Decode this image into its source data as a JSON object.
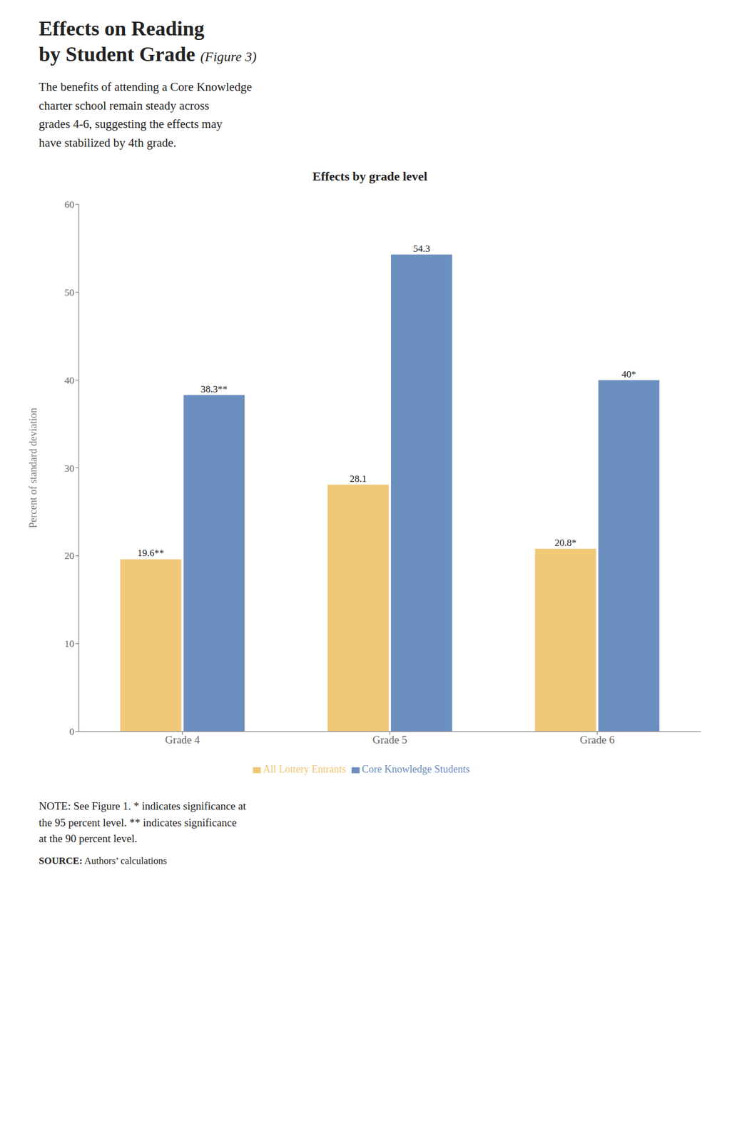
{
  "chart_data": {
    "type": "bar",
    "title": "Effects by grade level",
    "subtitle": "The benefits of attending a Core Knowledge\ncharter school remain steady across\ngrades 4-6, suggesting the effects may\nhave stabilized by 4th grade.",
    "annotations": [
      "Effects on Reading",
      "by Student Grade",
      "(Figure 3)",
      "NOTE: See Figure 1. * indicates significance at\nthe 95 percent level. ** indicates significance\nat the 90 percent level.",
      "SOURCE:",
      "Authors’ calculations"
    ],
    "categories": [
      "Grade 4",
      "Grade 5",
      "Grade 6"
    ],
    "series": [
      {
        "name": "All Lottery Entrants",
        "color": "#F0C878",
        "values": [
          19.6,
          28.1,
          20.8
        ],
        "value_labels": [
          "19.6**",
          "28.1",
          "20.8*"
        ]
      },
      {
        "name": "Core Knowledge Students",
        "color": "#6B8FBF",
        "values": [
          38.3,
          54.3,
          40.0
        ],
        "value_labels": [
          "38.3**",
          "54.3",
          "40*"
        ]
      }
    ],
    "ylabel": "Percent of standard deviation",
    "ylim": [
      0,
      60
    ],
    "yticks": [
      0,
      10,
      20,
      30,
      40,
      50,
      60
    ],
    "grid": false,
    "legend": "bottom",
    "data_labels": true
  }
}
